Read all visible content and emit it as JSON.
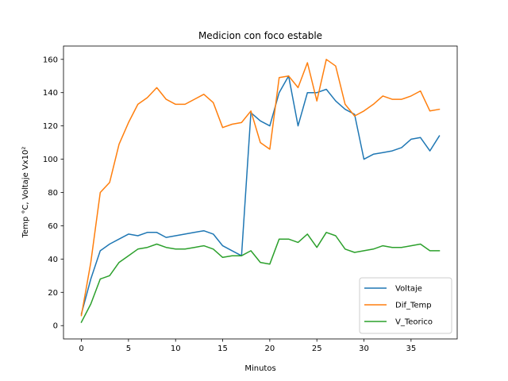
{
  "chart_data": {
    "type": "line",
    "title": "Medicion con foco estable",
    "xlabel": "Minutos",
    "ylabel": "Temp °C, Voltaje Vx10²",
    "xlim": [
      -1.9,
      39.9
    ],
    "ylim": [
      -8,
      168
    ],
    "xticks": [
      0,
      5,
      10,
      15,
      20,
      25,
      30,
      35
    ],
    "yticks": [
      0,
      20,
      40,
      60,
      80,
      100,
      120,
      140,
      160
    ],
    "grid": false,
    "legend_position": "bottom-right",
    "x": [
      0,
      1,
      2,
      3,
      4,
      5,
      6,
      7,
      8,
      9,
      10,
      11,
      12,
      13,
      14,
      15,
      16,
      17,
      18,
      19,
      20,
      21,
      22,
      23,
      24,
      25,
      26,
      27,
      28,
      29,
      30,
      31,
      32,
      33,
      34,
      35,
      36,
      37,
      38
    ],
    "series": [
      {
        "name": "Voltaje",
        "color": "#1f77b4",
        "values": [
          7,
          28,
          45,
          49,
          52,
          55,
          54,
          56,
          56,
          53,
          54,
          55,
          56,
          57,
          55,
          48,
          45,
          42,
          128,
          123,
          120,
          140,
          150,
          120,
          140,
          140,
          142,
          135,
          130,
          127,
          100,
          103,
          104,
          105,
          107,
          112,
          113,
          105,
          114
        ]
      },
      {
        "name": "Dif_Temp",
        "color": "#ff7f0e",
        "values": [
          6,
          38,
          80,
          86,
          109,
          122,
          133,
          137,
          143,
          136,
          133,
          133,
          136,
          139,
          134,
          119,
          121,
          122,
          129,
          110,
          106,
          149,
          150,
          143,
          158,
          135,
          160,
          156,
          133,
          126,
          129,
          133,
          138,
          136,
          136,
          138,
          141,
          129,
          130
        ]
      },
      {
        "name": "V_Teorico",
        "color": "#2ca02c",
        "values": [
          2,
          13,
          28,
          30,
          38,
          42,
          46,
          47,
          49,
          47,
          46,
          46,
          47,
          48,
          46,
          41,
          42,
          42,
          45,
          38,
          37,
          52,
          52,
          50,
          55,
          47,
          56,
          54,
          46,
          44,
          45,
          46,
          48,
          47,
          47,
          48,
          49,
          45,
          45
        ]
      }
    ]
  }
}
